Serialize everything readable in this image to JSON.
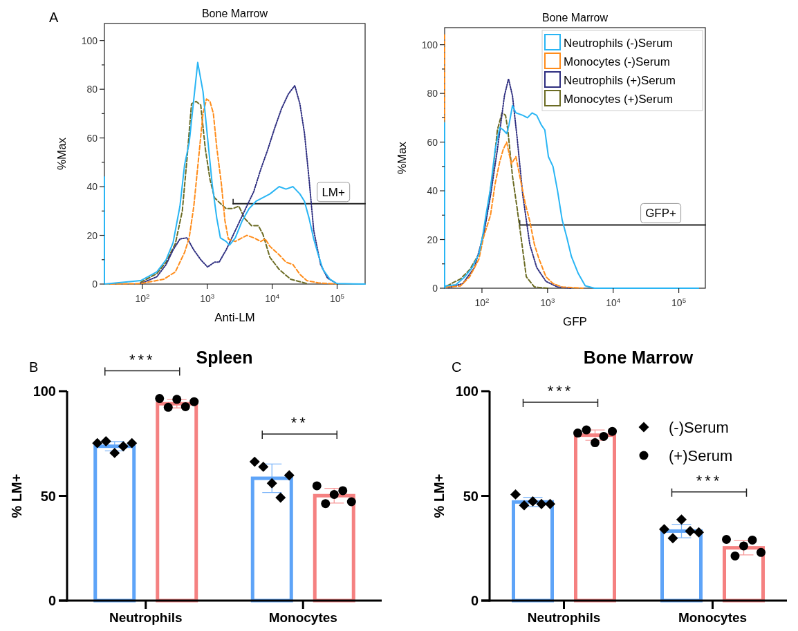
{
  "chart_data": [
    {
      "type": "line",
      "title": "Bone Marrow",
      "xlabel": "Anti-LM",
      "ylabel": "%Max",
      "log": "x",
      "legend": false,
      "xlim": [
        26,
        270000
      ],
      "ylim": [
        0,
        107
      ],
      "xticks": [
        {
          "value": 100,
          "label": "10$^{2}$"
        },
        {
          "value": 1000,
          "label": "10$^{3}$"
        },
        {
          "value": 10000,
          "label": "10$^{4}$"
        },
        {
          "value": 100000,
          "label": "10$^{5}$"
        }
      ],
      "yticks": [
        0,
        {
          "value": 10,
          "label": null
        },
        20,
        {
          "value": 30,
          "label": null
        },
        40,
        {
          "value": 50,
          "label": null
        },
        60,
        {
          "value": 70,
          "label": null
        },
        80,
        {
          "value": 90,
          "label": null
        },
        100
      ],
      "annotations": [
        "A"
      ],
      "series": [
        {
          "color": "#29b5f4",
          "line_style": "solid",
          "x": [
            26,
            26,
            94,
            167,
            232,
            297,
            379,
            447,
            526,
            620,
            712,
            859,
            1010,
            1190,
            1400,
            1590,
            1950,
            2200,
            2700,
            3450,
            4410,
            5640,
            7210,
            9210,
            12800,
            16300,
            20900,
            26700,
            31400,
            37000,
            43600,
            51300,
            60400,
            77200,
            98800,
            270000
          ],
          "values": [
            44,
            0,
            1.4,
            5,
            10,
            17,
            32,
            49,
            58,
            76,
            91,
            79,
            60,
            41,
            27,
            19,
            17.5,
            16,
            19,
            26,
            31,
            34,
            35.5,
            37,
            40,
            39,
            40,
            37,
            34,
            27,
            18.5,
            12,
            6,
            2,
            0.2,
            0
          ]
        },
        {
          "color": "#ff8c1a",
          "line_style": "dashed",
          "x": [
            26,
            94,
            214,
            322,
            379,
            447,
            526,
            620,
            730,
            859,
            972,
            1100,
            1240,
            1400,
            1650,
            1870,
            2110,
            2700,
            3450,
            4060,
            5200,
            6640,
            7820,
            9210,
            12800,
            16300,
            20900,
            26700,
            34100,
            51300,
            98800
          ],
          "values": [
            0,
            0.2,
            2,
            5,
            9,
            13,
            19,
            32,
            51,
            70,
            76,
            75,
            70,
            56,
            41,
            26,
            18.5,
            17.5,
            19,
            20,
            19,
            17.5,
            18.5,
            15.5,
            12,
            9,
            8,
            4,
            1.4,
            0.5,
            0
          ]
        },
        {
          "color": "#2e2e80",
          "line_style": "dotted",
          "x": [
            94,
            167,
            232,
            297,
            379,
            485,
            620,
            792,
            1010,
            1290,
            1520,
            1950,
            2490,
            3180,
            4060,
            5200,
            6640,
            8490,
            10900,
            13900,
            17700,
            22300,
            26700,
            31400,
            37000,
            43600,
            55700,
            71300,
            98800
          ],
          "values": [
            0.2,
            3,
            8,
            14,
            18.5,
            19,
            14,
            10,
            7,
            9,
            9,
            14,
            20,
            26,
            32,
            38,
            47,
            55,
            64,
            72,
            78,
            81.5,
            74,
            62,
            43,
            22,
            8,
            2.4,
            0.2
          ]
        },
        {
          "color": "#6b6b23",
          "line_style": "dashed",
          "x": [
            94,
            167,
            232,
            322,
            412,
            485,
            571,
            673,
            792,
            933,
            1100,
            1290,
            1520,
            1950,
            2490,
            3060,
            3750,
            4790,
            6120,
            7210,
            9210,
            12800,
            19200,
            34100
          ],
          "values": [
            0.7,
            4.3,
            9,
            16.6,
            30,
            51,
            74,
            75,
            73.5,
            55.5,
            43,
            35.5,
            33.6,
            31,
            31,
            32,
            27,
            24,
            24,
            20.4,
            11,
            6,
            2,
            0.2
          ]
        },
        {
          "name": "LM+",
          "color": "#222222",
          "x": [
            2500,
            270000
          ],
          "values": [
            33,
            33
          ]
        }
      ]
    },
    {
      "type": "line",
      "title": "Bone Marrow",
      "xlabel": "GFP",
      "ylabel": "%Max",
      "log": "x",
      "legend": "top right",
      "xlim": [
        27,
        254000
      ],
      "ylim": [
        0,
        107
      ],
      "xticks": [
        {
          "value": 100,
          "label": "10$^{2}$"
        },
        {
          "value": 1000,
          "label": "10$^{3}$"
        },
        {
          "value": 10000,
          "label": "10$^{4}$"
        },
        {
          "value": 100000,
          "label": "10$^{5}$"
        }
      ],
      "yticks": [
        0,
        {
          "value": 10,
          "label": null
        },
        20,
        {
          "value": 30,
          "label": null
        },
        40,
        {
          "value": 50,
          "label": null
        },
        60,
        {
          "value": 70,
          "label": null
        },
        80,
        {
          "value": 90,
          "label": null
        },
        100
      ],
      "series": [
        {
          "name": "Neutrophils (-)Serum",
          "color": "#29b5f4",
          "line_style": "solid",
          "x": [
            27,
            27,
            28,
            40,
            55,
            71,
            90,
            102,
            115,
            135,
            159,
            187,
            211,
            238,
            258,
            292,
            329,
            420,
            494,
            581,
            683,
            804,
            908,
            1030,
            1210,
            1420,
            1670,
            1960,
            2310,
            2940,
            3750,
            5190,
            200000
          ],
          "values": [
            68,
            0,
            0.9,
            1.4,
            4.7,
            8.5,
            14,
            21,
            30,
            41,
            57,
            66,
            65,
            63.5,
            67,
            75,
            72,
            71,
            70,
            72,
            71,
            67,
            65,
            54,
            50,
            40,
            28,
            21,
            13,
            6,
            1,
            0,
            0
          ]
        },
        {
          "name": "Monocytes (-)Serum",
          "color": "#ff8c1a",
          "line_style": "dashed",
          "x": [
            27,
            27,
            29,
            47,
            65,
            90,
            106,
            135,
            159,
            187,
            211,
            238,
            280,
            329,
            387,
            455,
            536,
            630,
            741,
            945,
            1210,
            1670,
            3460
          ],
          "values": [
            104,
            0,
            0.5,
            0.9,
            4.7,
            12,
            21,
            30,
            43,
            52,
            57,
            60,
            51,
            54,
            44.5,
            35,
            27.5,
            18,
            12,
            4.7,
            1.9,
            0.5,
            0
          ]
        },
        {
          "name": "Neutrophils (+)Serum",
          "color": "#2e2e80",
          "line_style": "dotted",
          "x": [
            31,
            51,
            77,
            106,
            135,
            172,
            220,
            254,
            292,
            343,
            420,
            536,
            683,
            945,
            1420,
            2310
          ],
          "values": [
            0.2,
            1.9,
            8.5,
            22,
            38,
            57,
            79,
            86,
            79,
            62,
            38,
            18,
            8.5,
            2.8,
            0.5,
            0
          ]
        },
        {
          "name": "Monocytes (+)Serum",
          "color": "#6b6b23",
          "line_style": "dashed",
          "x": [
            29,
            47,
            65,
            90,
            115,
            146,
            172,
            202,
            229,
            248,
            292,
            343,
            403,
            474,
            630,
            1030
          ],
          "values": [
            0.9,
            3.8,
            7.6,
            14,
            28,
            47,
            65,
            72,
            71,
            65,
            46,
            33,
            19,
            4.7,
            0.5,
            0
          ]
        },
        {
          "name": "GFP+",
          "color": "#222222",
          "x": [
            377,
            254000
          ],
          "values": [
            26,
            26
          ]
        }
      ]
    },
    {
      "type": "bar",
      "title": "Spleen",
      "ylabel": "% LM+",
      "categories": [
        "Neutrophils",
        "Monocytes"
      ],
      "ylim": [
        0,
        100
      ],
      "yticks": [
        0,
        50,
        100
      ],
      "legend": false,
      "annotations": [
        "B",
        "***",
        "**"
      ],
      "series": [
        {
          "type": "bar",
          "color": "#5ea4f8",
          "values": [
            73.7,
            58.4
          ],
          "errors": [
            2.2,
            6.8
          ]
        },
        {
          "type": "bar",
          "color": "#f58181",
          "values": [
            94,
            50.1
          ],
          "errors": [
            2,
            3.5
          ]
        },
        {
          "type": "scatter",
          "marker": "diamond",
          "color": "#000000",
          "x": [
            "Neutrophils",
            "Neutrophils",
            "Neutrophils",
            "Neutrophils",
            "Neutrophils",
            "Monocytes",
            "Monocytes",
            "Monocytes",
            "Monocytes",
            "Monocytes"
          ],
          "values": [
            75.2,
            76.1,
            70.5,
            73.7,
            75.2,
            66.3,
            63.9,
            56,
            49.2,
            59.8
          ]
        },
        {
          "type": "scatter",
          "marker": "circle",
          "color": "#000000",
          "x": [
            "Neutrophils",
            "Neutrophils",
            "Neutrophils",
            "Neutrophils",
            "Neutrophils",
            "Monocytes",
            "Monocytes",
            "Monocytes",
            "Monocytes",
            "Monocytes"
          ],
          "values": [
            96.5,
            92.3,
            96.1,
            92.6,
            95,
            54.8,
            46.3,
            50.7,
            52.5,
            47.2
          ]
        }
      ]
    },
    {
      "type": "bar",
      "title": "Bone Marrow",
      "ylabel": "% LM+",
      "categories": [
        "Neutrophils",
        "Monocytes"
      ],
      "ylim": [
        0,
        100
      ],
      "yticks": [
        0,
        50,
        100
      ],
      "legend": "top right",
      "annotations": [
        "C",
        "***",
        "***"
      ],
      "series": [
        {
          "type": "bar",
          "color": "#5ea4f8",
          "values": [
            47.1,
            33.2
          ],
          "errors": [
            2.2,
            3.2
          ]
        },
        {
          "type": "bar",
          "color": "#f58181",
          "values": [
            79,
            25.2
          ],
          "errors": [
            2.5,
            3.4
          ]
        },
        {
          "type": "scatter",
          "name": "(-)Serum",
          "marker": "diamond",
          "color": "#000000",
          "x": [
            "Neutrophils",
            "Neutrophils",
            "Neutrophils",
            "Neutrophils",
            "Neutrophils",
            "Monocytes",
            "Monocytes",
            "Monocytes",
            "Monocytes",
            "Monocytes"
          ],
          "values": [
            50.7,
            45.5,
            47.4,
            46.1,
            46.1,
            34.1,
            29.8,
            38.7,
            33.2,
            32.6
          ]
        },
        {
          "type": "scatter",
          "name": "(+)Serum",
          "marker": "circle",
          "color": "#000000",
          "x": [
            "Neutrophils",
            "Neutrophils",
            "Neutrophils",
            "Neutrophils",
            "Neutrophils",
            "Monocytes",
            "Monocytes",
            "Monocytes",
            "Monocytes",
            "Monocytes"
          ],
          "values": [
            80,
            81.5,
            75.4,
            78.4,
            80.8,
            29.2,
            21.3,
            26.1,
            28.9,
            23
          ]
        }
      ]
    }
  ]
}
